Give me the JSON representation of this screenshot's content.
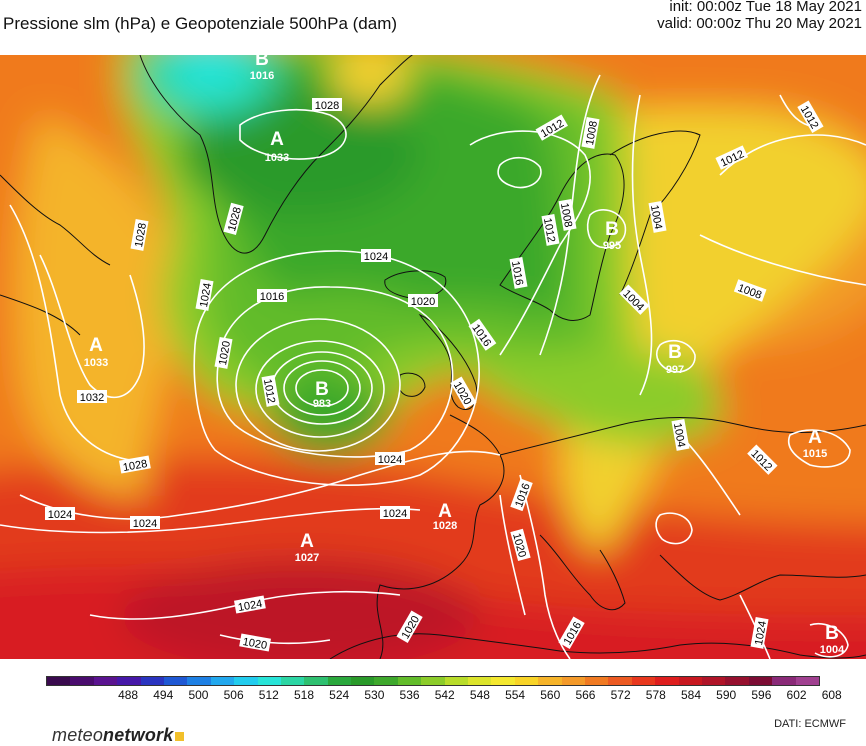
{
  "header": {
    "title": "Pressione slm (hPa) e Geopotenziale 500hPa (dam)",
    "init": "init: 00:00z Tue 18 May 2021",
    "valid": "valid: 00:00z Thu 20 May 2021"
  },
  "colorbar": {
    "ticks": [
      "488",
      "494",
      "500",
      "506",
      "512",
      "518",
      "524",
      "530",
      "536",
      "542",
      "548",
      "554",
      "560",
      "566",
      "572",
      "578",
      "584",
      "590",
      "596",
      "602",
      "608"
    ],
    "colors": [
      "#3a0a4e",
      "#4a0c6e",
      "#5a1390",
      "#4618a8",
      "#2a34c0",
      "#1f58d4",
      "#1e80e4",
      "#22a8ee",
      "#22ccee",
      "#28e4d8",
      "#2cd6a4",
      "#2ec070",
      "#2aa83c",
      "#2a9a2a",
      "#3ea82c",
      "#62bc2a",
      "#8ccc2a",
      "#b8dc2a",
      "#dce42c",
      "#f4e830",
      "#f8d428",
      "#f6b42a",
      "#f49a2a",
      "#f07a22",
      "#ec5a22",
      "#e8381e",
      "#de1e1e",
      "#c81820",
      "#b01428",
      "#96102e",
      "#7c0c34",
      "#8a2a78",
      "#a04090"
    ]
  },
  "map": {
    "isobar_labels": [
      "1028",
      "1028",
      "1028",
      "1024",
      "1016",
      "1020",
      "1020",
      "1012",
      "1032",
      "1028",
      "1024",
      "1024",
      "1024",
      "1024",
      "1020",
      "1024",
      "1016",
      "1020",
      "1016",
      "1020",
      "1016",
      "1012",
      "1008",
      "1012",
      "1016",
      "1008",
      "1004",
      "1008",
      "1004",
      "1012",
      "1012",
      "1012",
      "1004",
      "1020",
      "1024",
      "1024"
    ],
    "centers": [
      {
        "letter": "A",
        "value": "1033"
      },
      {
        "letter": "A",
        "value": "1033"
      },
      {
        "letter": "B",
        "value": "983"
      },
      {
        "letter": "B",
        "value": "995"
      },
      {
        "letter": "B",
        "value": "997"
      },
      {
        "letter": "A",
        "value": "1027"
      },
      {
        "letter": "A",
        "value": "1028"
      },
      {
        "letter": "A",
        "value": "1015"
      },
      {
        "letter": "B",
        "value": "1004"
      },
      {
        "letter": "B",
        "value": "1016"
      }
    ]
  },
  "branding": {
    "logo_light": "meteo",
    "logo_bold": "network",
    "source": "DATI:  ECMWF"
  }
}
